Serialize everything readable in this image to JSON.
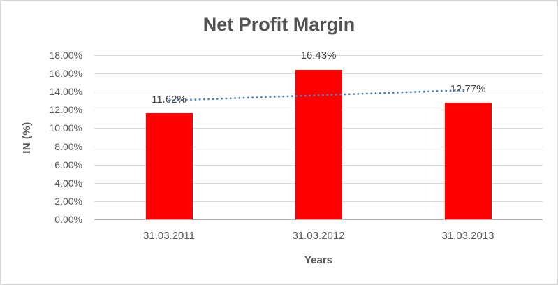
{
  "chart": {
    "background": "#FFFFFF",
    "border_color": "#D6D6D6",
    "title_color": "#525252",
    "axis_text_color": "#595959",
    "data_label_color": "#404040",
    "gridline_color": "#D9D9D9",
    "axis_line_color": "#B0B0B0"
  },
  "chart_data": {
    "type": "bar",
    "title": "Net Profit Margin",
    "xlabel": "Years",
    "ylabel": "IN (%)",
    "categories": [
      "31.03.2011",
      "31.03.2012",
      "31.03.2013"
    ],
    "values": [
      11.62,
      16.43,
      12.77
    ],
    "data_labels": [
      "11.62%",
      "16.43%",
      "12.77%"
    ],
    "bar_color": "#FF0000",
    "ylim": [
      0,
      18
    ],
    "y_tick_step": 2,
    "y_tick_labels": [
      "0.00%",
      "2.00%",
      "4.00%",
      "6.00%",
      "8.00%",
      "10.00%",
      "12.00%",
      "14.00%",
      "16.00%",
      "18.00%"
    ],
    "grid": true,
    "legend": "none",
    "trendline": {
      "type": "linear",
      "style": "dotted",
      "color": "#4F81BD",
      "start_value": 13.03,
      "end_value": 14.18
    }
  }
}
